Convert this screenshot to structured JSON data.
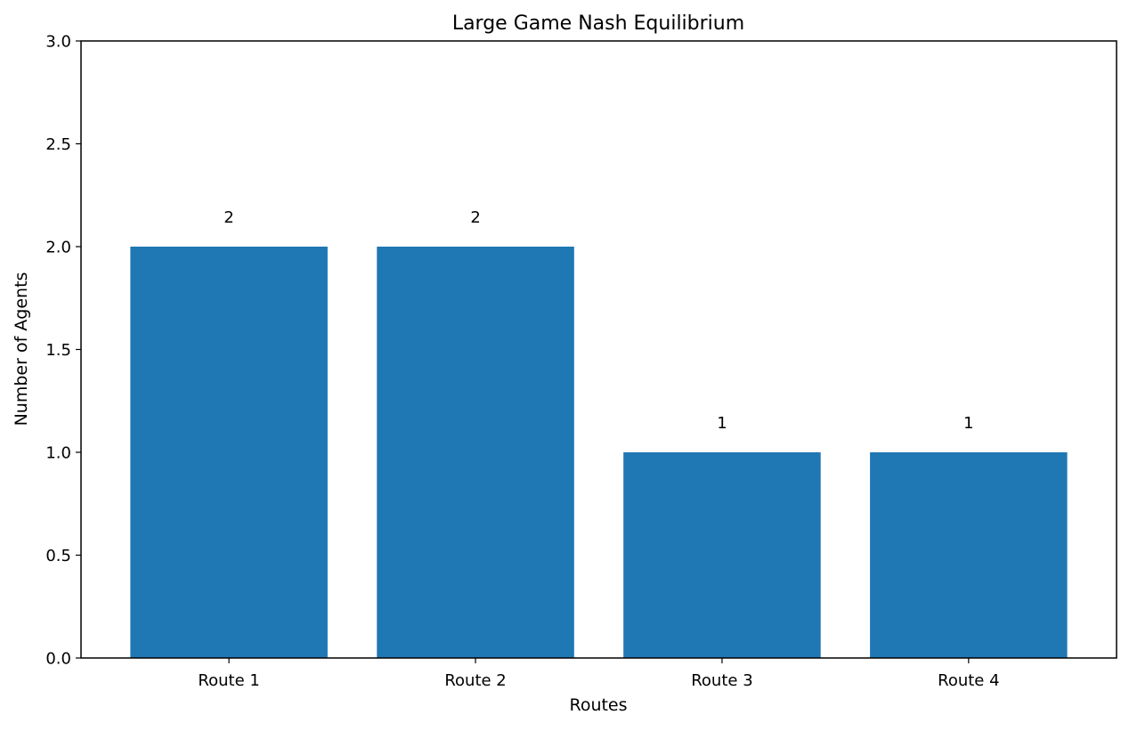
{
  "chart_data": {
    "type": "bar",
    "title": "Large Game Nash Equilibrium",
    "xlabel": "Routes",
    "ylabel": "Number of Agents",
    "categories": [
      "Route 1",
      "Route 2",
      "Route 3",
      "Route 4"
    ],
    "values": [
      2,
      2,
      1,
      1
    ],
    "data_labels": [
      "2",
      "2",
      "1",
      "1"
    ],
    "ylim": [
      0,
      3
    ],
    "yticks": [
      0,
      0.5,
      1,
      1.5,
      2,
      2.5,
      3
    ],
    "ytick_labels": [
      "0.0",
      "0.5",
      "1.0",
      "1.5",
      "2.0",
      "2.5",
      "3.0"
    ],
    "bar_color": "#1f77b4",
    "grid": false,
    "legend": "none"
  }
}
